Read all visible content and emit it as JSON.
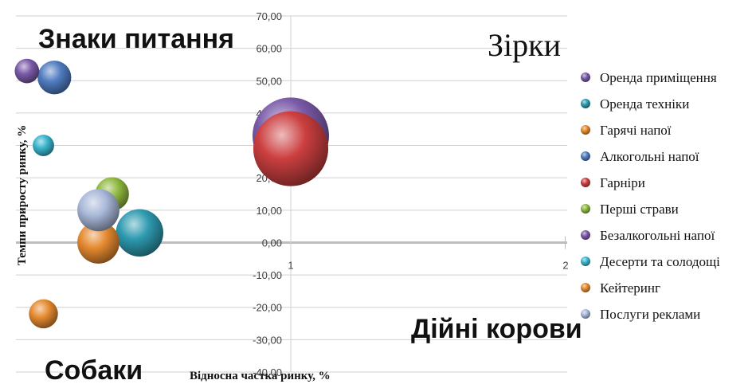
{
  "chart_data": {
    "type": "bubble",
    "xlabel": "Відносна частка ринку, %",
    "ylabel": "Темпи приросту ринку, %",
    "xlim": [
      0,
      2
    ],
    "ylim": [
      -40,
      70
    ],
    "y_ticks": [
      "70,00",
      "60,00",
      "50,00",
      "40,00",
      "30,00",
      "20,00",
      "10,00",
      "0,00",
      "-10,00",
      "-20,00",
      "-30,00",
      "-40,00"
    ],
    "x_ticks": [
      "1",
      "2"
    ],
    "quadrants": {
      "top_left": "Знаки питання",
      "top_right": "Зірки",
      "bottom_left": "Собаки",
      "bottom_right": "Дійні корови"
    },
    "legend_position": "right",
    "series": [
      {
        "name": "Оренда приміщення",
        "color": "#7a5aa8",
        "x": 1.0,
        "y": 33,
        "size": 1.0
      },
      {
        "name": "Оренда техніки",
        "color": "#2e9ab0",
        "x": 0.45,
        "y": 3,
        "size": 0.62
      },
      {
        "name": "Гарячі напої",
        "color": "#e58a30",
        "x": 0.3,
        "y": 0,
        "size": 0.55
      },
      {
        "name": "Алкогольні напої",
        "color": "#4f7cc0",
        "x": 0.14,
        "y": 51,
        "size": 0.44
      },
      {
        "name": "Гарніри",
        "color": "#cc3f40",
        "x": 1.0,
        "y": 29,
        "size": 0.98
      },
      {
        "name": "Перші страви",
        "color": "#8fb83e",
        "x": 0.35,
        "y": 15,
        "size": 0.44
      },
      {
        "name": "Безалкогольні напої",
        "color": "#7a5aa8",
        "x": 0.04,
        "y": 53,
        "size": 0.32
      },
      {
        "name": "Десерти та солодощі",
        "color": "#38b4cc",
        "x": 0.1,
        "y": 30,
        "size": 0.28
      },
      {
        "name": "Кейтеринг",
        "color": "#e58a30",
        "x": 0.1,
        "y": -22,
        "size": 0.38
      },
      {
        "name": "Послуги реклами",
        "color": "#a8b8d8",
        "x": 0.3,
        "y": 10,
        "size": 0.55
      }
    ]
  }
}
